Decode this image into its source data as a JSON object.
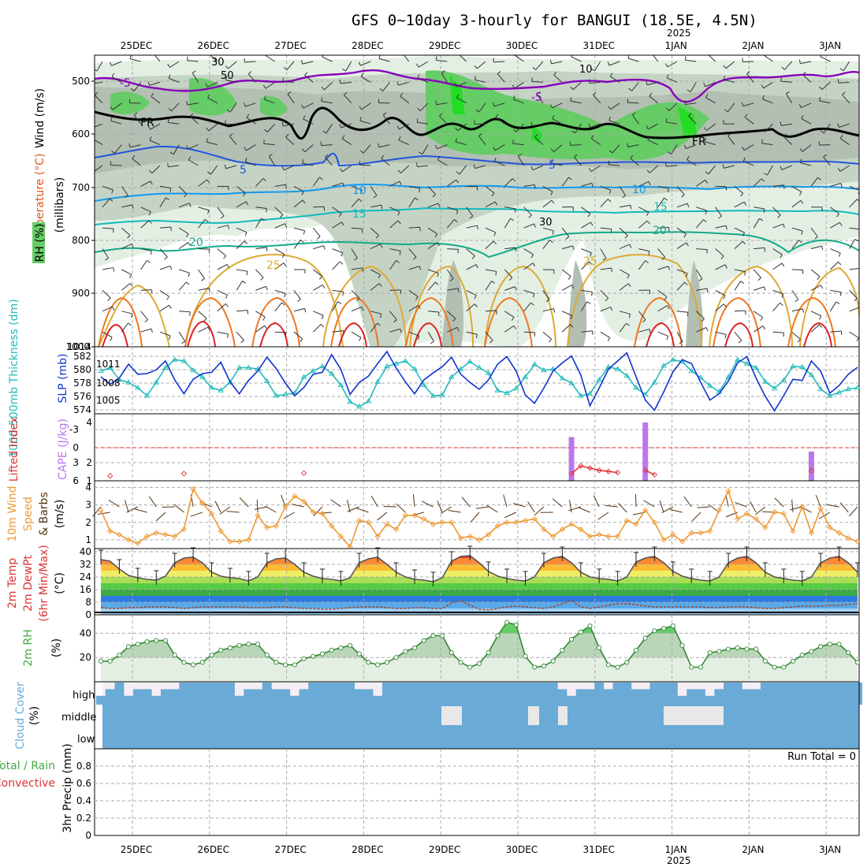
{
  "header": {
    "title": "GFS 0~10day 3-hourly for BANGUI (18.5E, 4.5N)",
    "year_label": "2025"
  },
  "dates": [
    "25DEC",
    "26DEC",
    "27DEC",
    "28DEC",
    "29DEC",
    "30DEC",
    "31DEC",
    "1JAN",
    "2JAN",
    "3JAN"
  ],
  "colors": {
    "rh_light": "#e4efe4",
    "rh_mid": "#c5d3c5",
    "rh_dark": "#b2bfb2",
    "rh_green": "#66cc66",
    "rh_bright": "#22dd22",
    "temp_5_neg": "#8800bb",
    "temp_5": "#2255dd",
    "temp_10": "#1199ee",
    "temp_15": "#11bbbb",
    "temp_20": "#11aa88",
    "temp_25": "#ddaa33",
    "temp_30": "#ee7722",
    "temp_35": "#dd2222",
    "slp": "#1133cc",
    "thickness": "#22bbbb",
    "cape": "#bb77ee",
    "lifted": "#dd3333",
    "wind10": "#ee9933",
    "rh2m": "#44aa44",
    "cloud": "#6aaad6"
  },
  "panels": {
    "upper": {
      "labels": [
        "Wind (m/s)",
        "Temperature (°C)",
        "RH (%)",
        "(millibars)"
      ],
      "y_ticks": [
        "500",
        "600",
        "700",
        "800",
        "900",
        "1000"
      ],
      "contour_labels": {
        "fr": "FR",
        "t_neg5": "-5",
        "t5": "5",
        "t10": "10",
        "t15": "15",
        "t20": "20",
        "t25": "25",
        "rh30": "30",
        "rh50": "50",
        "rh10": "10"
      }
    },
    "slp": {
      "label_thickness": "1000-500mb Thickness (dm)",
      "label_slp": "SLP (mb)",
      "left_ticks": [
        "582",
        "580",
        "578",
        "576",
        "574"
      ],
      "right_ticks": [
        "1011",
        "1008",
        "1005"
      ]
    },
    "cape": {
      "label_li": "Lifted Index",
      "label_cape": "CAPE (J/kg)",
      "left_ticks": [
        "-3",
        "0",
        "3",
        "6"
      ],
      "right_ticks": [
        "4",
        "2",
        "1"
      ]
    },
    "wind10": {
      "label_1": "10m Wind",
      "label_2": "Speed",
      "label_3": "& Barbs",
      "label_4": "(m/s)",
      "ticks": [
        "4",
        "3",
        "2",
        "1"
      ]
    },
    "temp2m": {
      "label_1": "2m Temp",
      "label_2": "2m DewPt",
      "label_3": "(6hr Min/Max)",
      "label_4": "(°C)",
      "ticks": [
        "40",
        "32",
        "24",
        "16",
        "8",
        "0"
      ]
    },
    "rh2m": {
      "label_1": "2m RH",
      "label_2": "(%)",
      "ticks": [
        "40",
        "20"
      ]
    },
    "cloud": {
      "label_1": "Cloud Cover",
      "label_2": "(%)",
      "rows": [
        "high",
        "middle",
        "low"
      ]
    },
    "precip": {
      "label_1": "Total / Rain",
      "label_2": "Convective",
      "label_3": "3hr Precip (mm)",
      "ticks": [
        "0.8",
        "0.6",
        "0.4",
        "0.2",
        "0"
      ],
      "run_total": "Run Total = 0"
    }
  },
  "chart_data": [
    {
      "type": "line",
      "title": "SLP (mb)",
      "x_step_hours": 3,
      "ylim": [
        1002,
        1014
      ],
      "values": [
        1009,
        1007.8,
        1008.8,
        1011,
        1009.4,
        1009.5,
        1010.1,
        1011.5,
        1008.5,
        1006.3,
        1008.6,
        1009.5,
        1009.7,
        1011.3,
        1008.2,
        1006.3,
        1008.4,
        1009.9,
        1012.1,
        1010.3,
        1008,
        1006,
        1007.3,
        1009.4,
        1009.7,
        1012.5,
        1010.2,
        1006.2,
        1008.1,
        1009.1,
        1011.1,
        1013,
        1010.4,
        1008.2,
        1006.3,
        1008.5,
        1009.6,
        1010.6,
        1012.1,
        1009.4,
        1008.1,
        1007,
        1008.5,
        1011,
        1012.2,
        1009.9,
        1006.1,
        1004.8,
        1007.2,
        1009.9,
        1011.2,
        1012.3,
        1009.3,
        1004.4,
        1007.2,
        1010.2,
        1011.5,
        1012.8,
        1009,
        1005.3,
        1003.7,
        1006.6,
        1009.8,
        1011.7,
        1011.1,
        1008.1,
        1005.3,
        1006.3,
        1008.3,
        1011.2,
        1012.2,
        1008.8,
        1005.9,
        1003.6,
        1006,
        1008.6,
        1008.4,
        1011.5,
        1009.9,
        1006.4,
        1007.6,
        1009.4,
        1010.5
      ]
    },
    {
      "type": "line",
      "title": "1000-500mb Thickness (dm)",
      "x_step_hours": 3,
      "ylim": [
        573.5,
        583
      ],
      "values": [
        579.8,
        580.3,
        578.5,
        578.1,
        577.3,
        576.1,
        578.1,
        580.3,
        581.5,
        581.3,
        579.9,
        578.9,
        577.3,
        576.9,
        578.1,
        580.3,
        580.3,
        580.1,
        578.3,
        576.1,
        576.3,
        576.5,
        578.9,
        579.8,
        580.5,
        579.4,
        577.7,
        575.2,
        574.5,
        575.3,
        578.2,
        580.5,
        580.9,
        581.3,
        580.1,
        577.7,
        576.1,
        576.2,
        578.9,
        580.1,
        581.2,
        580.3,
        579.5,
        576.9,
        576.5,
        577.2,
        578.9,
        580.8,
        579.9,
        580.1,
        578.7,
        578,
        576.1,
        576.4,
        578.5,
        580.4,
        580.1,
        579.1,
        577.3,
        576.3,
        578.1,
        580.6,
        581.5,
        581.2,
        579.8,
        578.8,
        577.6,
        576.7,
        578.9,
        581.5,
        580.9,
        580.3,
        578.2,
        577.2,
        578.4,
        580.5,
        580.4,
        579.2,
        577.1,
        576.1,
        576.6,
        577.1,
        577.3
      ]
    },
    {
      "type": "bar",
      "title": "CAPE (J/kg)",
      "x_step_hours": 3,
      "values": [
        0,
        0,
        0,
        0,
        0,
        0,
        0,
        0,
        0,
        0,
        0,
        0,
        0,
        0,
        0,
        0,
        0,
        0,
        0,
        0,
        0,
        0,
        0,
        0,
        0,
        0,
        0,
        0,
        0,
        0,
        0,
        0,
        0,
        0,
        0,
        0,
        0,
        0,
        0,
        0,
        0,
        0,
        0,
        0,
        0,
        0,
        0,
        0,
        0,
        0,
        0,
        3,
        0,
        0,
        0,
        0,
        0,
        0,
        0,
        4,
        0,
        0,
        0,
        0,
        0,
        0,
        0,
        0,
        0,
        0,
        0,
        0,
        0,
        0,
        0,
        0,
        0,
        2,
        0,
        0,
        0,
        0,
        0
      ]
    },
    {
      "type": "line",
      "title": "Lifted Index",
      "x_step_hours": 3,
      "ylim": [
        -5,
        6
      ],
      "values": [
        null,
        5.1,
        null,
        null,
        null,
        null,
        null,
        null,
        null,
        4.7,
        null,
        null,
        null,
        null,
        null,
        null,
        null,
        null,
        null,
        null,
        null,
        null,
        4.6,
        null,
        null,
        null,
        null,
        null,
        null,
        null,
        null,
        null,
        null,
        null,
        null,
        null,
        null,
        null,
        null,
        null,
        null,
        null,
        null,
        null,
        null,
        null,
        null,
        null,
        null,
        null,
        null,
        4.7,
        3.3,
        3.7,
        4.1,
        4.3,
        4.5,
        null,
        null,
        4.1,
        4.9,
        null,
        null,
        null,
        null,
        null,
        null,
        null,
        null,
        null,
        null,
        null,
        null,
        null,
        null,
        null,
        null,
        4.2,
        null,
        null,
        null,
        null,
        null
      ]
    },
    {
      "type": "line",
      "title": "10m Wind Speed (m/s)",
      "x_step_hours": 3,
      "ylim": [
        0.5,
        4.2
      ],
      "values": [
        2.7,
        1.5,
        1.3,
        1,
        0.8,
        1.2,
        1.4,
        1.3,
        1.2,
        1.6,
        3.9,
        3.1,
        2.5,
        1.5,
        0.9,
        0.9,
        1,
        2.4,
        1.7,
        1.8,
        2.9,
        3.5,
        3.2,
        2.6,
        2.5,
        1.8,
        1.2,
        0.6,
        2.1,
        2,
        1.2,
        1.9,
        1.6,
        2.4,
        2.4,
        2.2,
        1.9,
        2,
        2,
        1.1,
        1.2,
        1,
        1.3,
        1.8,
        2,
        2,
        2.1,
        2.2,
        1.6,
        1.2,
        1.6,
        1.9,
        1.6,
        1.2,
        1.3,
        1.2,
        1.2,
        2.1,
        1.9,
        2.7,
        2,
        1,
        1.3,
        0.9,
        1.4,
        1.4,
        1.5,
        2.7,
        3.8,
        2.2,
        2.5,
        2.2,
        1.7,
        2.6,
        2.5,
        1.5,
        2.9,
        1.4,
        2.8,
        1.7,
        1.4,
        1.1,
        0.9
      ]
    },
    {
      "type": "area",
      "title": "2m Temp (°C)",
      "x_step_hours": 3,
      "ylim": [
        0,
        42
      ],
      "values": [
        35,
        34,
        29,
        25,
        23.5,
        22.5,
        22,
        24.5,
        33,
        36,
        36.5,
        33,
        27,
        24.5,
        23.5,
        23,
        21.5,
        24,
        33,
        35.5,
        36,
        32,
        27,
        24.5,
        23,
        22.5,
        21.5,
        23.5,
        33,
        35.5,
        36.5,
        32,
        27,
        24,
        22.5,
        22,
        21,
        23.5,
        34,
        37,
        37.5,
        33,
        27.5,
        24.5,
        23,
        22,
        21.5,
        24,
        33,
        36,
        37,
        33,
        27,
        24,
        23,
        22.5,
        21.5,
        24,
        33.5,
        36,
        37,
        33,
        27.5,
        24.5,
        23,
        22,
        21.5,
        24,
        33,
        36,
        37,
        33,
        27,
        24,
        23,
        22,
        21.5,
        24,
        33,
        36,
        37,
        33,
        27
      ]
    },
    {
      "type": "line",
      "title": "2m DewPt (°C)",
      "x_step_hours": 3,
      "values": [
        4.5,
        4,
        4,
        4.5,
        4.5,
        5,
        5,
        5,
        4.5,
        4,
        4.5,
        5,
        5,
        5,
        5,
        5,
        4.5,
        4.5,
        4.5,
        5,
        5,
        4.5,
        4,
        4,
        3.5,
        3.5,
        4,
        4.5,
        5,
        5,
        5,
        4.5,
        4,
        4,
        4.5,
        4.5,
        4,
        4,
        7.5,
        9,
        6,
        3.5,
        3,
        4,
        5,
        5.5,
        5,
        4.5,
        4,
        5,
        7,
        9,
        5,
        4,
        5,
        6,
        7,
        7,
        6.5,
        5.5,
        5,
        5,
        5,
        5,
        5,
        5,
        4.5,
        4.5,
        5,
        5,
        5,
        4.5,
        4,
        4,
        4.5,
        5,
        5.5,
        5.5,
        5.5,
        6,
        6,
        6.5,
        7
      ]
    },
    {
      "type": "area",
      "title": "2m RH (%)",
      "x_step_hours": 3,
      "ylim": [
        0,
        55
      ],
      "values": [
        17,
        17,
        22,
        29,
        31,
        33,
        34,
        34,
        22,
        16,
        14,
        16,
        22,
        26,
        28,
        30,
        31,
        31,
        22,
        16,
        14,
        14,
        19,
        21,
        23,
        26,
        28,
        30,
        23,
        16,
        14,
        16,
        20,
        25,
        28,
        34,
        38,
        38,
        24,
        16,
        12,
        15,
        24,
        38,
        49,
        47,
        21,
        12,
        13,
        17,
        26,
        35,
        41,
        46,
        28,
        14,
        12,
        16,
        26,
        36,
        42,
        44,
        46,
        30,
        12,
        12,
        24,
        25,
        27,
        28,
        27,
        27,
        17,
        12,
        12,
        17,
        22,
        25,
        29,
        31,
        31,
        24,
        16
      ]
    },
    {
      "type": "bar",
      "title": "Cloud Cover (%)",
      "categories": [
        "high",
        "middle",
        "low"
      ],
      "note": "high cloud mostly overcast with intermittent clear gaps; middle cloud overcast with partial gaps on 29DEC-1JAN; low cloud overcast"
    },
    {
      "type": "bar",
      "title": "3hr Precip (mm)",
      "ylim": [
        0,
        0.9
      ],
      "values": [],
      "run_total": 0
    }
  ]
}
